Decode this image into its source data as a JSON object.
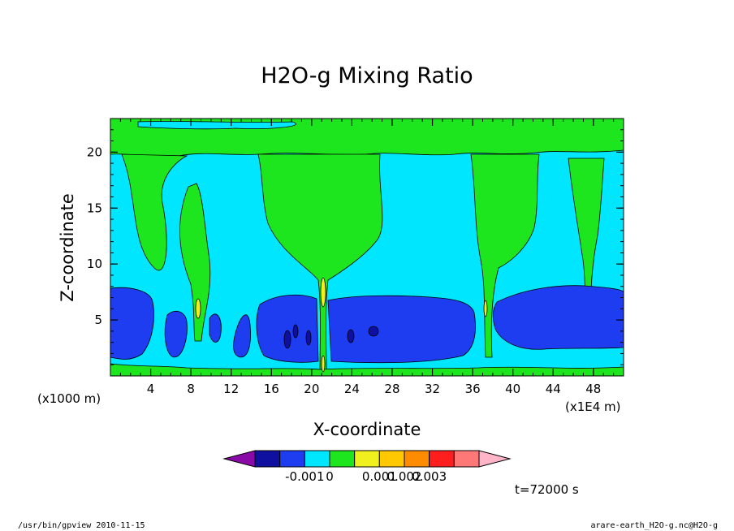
{
  "chart_data": {
    "type": "heatmap",
    "title": "H2O-g Mixing Ratio",
    "xlabel": "X-coordinate",
    "ylabel": "Z-coordinate",
    "x_unit_left": "(x1000 m)",
    "x_unit_right": "(x1E4 m)",
    "xlim": [
      0,
      51
    ],
    "ylim": [
      0,
      23
    ],
    "x_ticks": [
      4,
      8,
      12,
      16,
      20,
      24,
      28,
      32,
      36,
      40,
      44,
      48
    ],
    "y_ticks": [
      5,
      10,
      15,
      20
    ],
    "x_tick_labels": [
      "4",
      "8",
      "12",
      "16",
      "20",
      "24",
      "28",
      "32",
      "36",
      "40",
      "44",
      "48"
    ],
    "y_tick_labels": [
      "5",
      "10",
      "15",
      "20"
    ],
    "colorbar": {
      "colors": [
        "#8a0aa8",
        "#1010a0",
        "#1e3cf0",
        "#00e6ff",
        "#1ee61e",
        "#f0f01e",
        "#ffc800",
        "#ff8c00",
        "#ff1e1e",
        "#ff7878",
        "#ffb4c8"
      ],
      "tick_labels": [
        "-0.001",
        "0",
        "0.001",
        "0.002",
        "0.003"
      ],
      "tick_boundaries": [
        2,
        3,
        5,
        6,
        7
      ]
    },
    "time_label": "t=72000 s",
    "footer_left": "/usr/bin/gpview  2010-11-15",
    "footer_right": "arare-earth_H2O-g.nc@H2O-g"
  },
  "colors": {
    "cyan": "#00e6ff",
    "green": "#1ee61e",
    "blue": "#1e3cf0",
    "darkblue": "#1010a0",
    "yellow": "#f0f01e"
  }
}
